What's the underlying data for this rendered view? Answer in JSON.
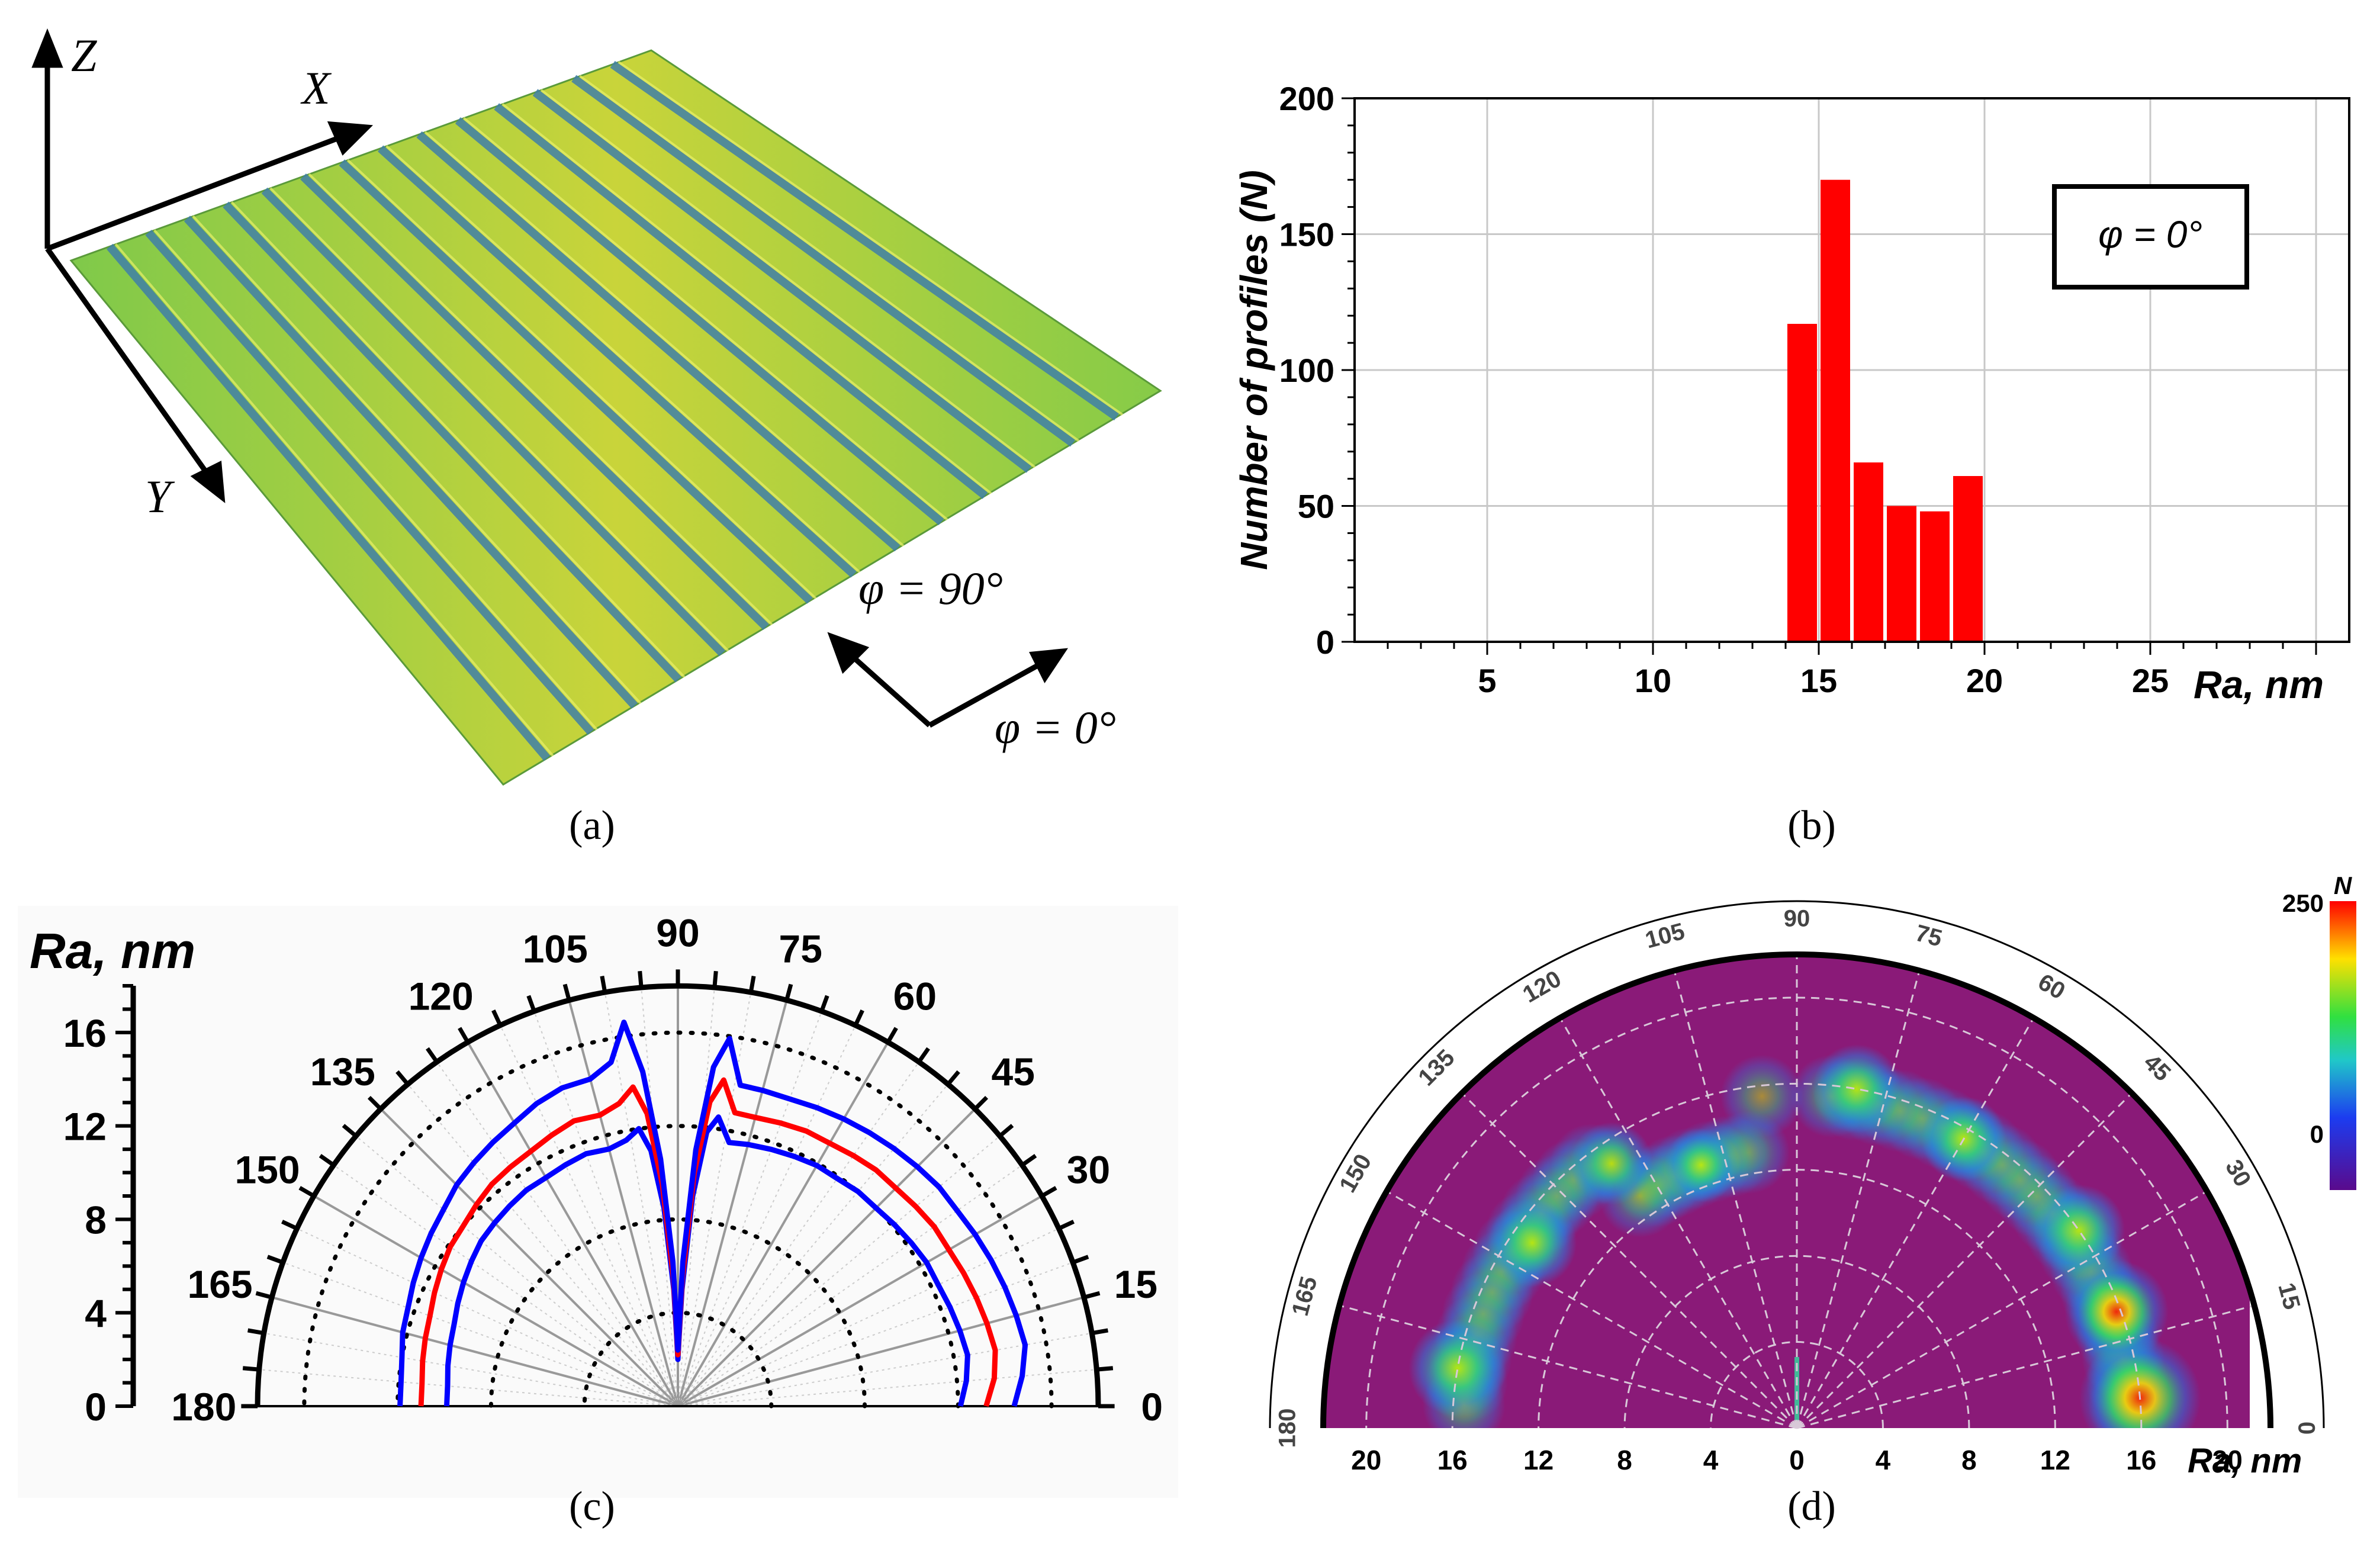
{
  "panels": {
    "a": {
      "caption": "(a)",
      "axes": {
        "z": "Z",
        "x": "X",
        "y": "Y"
      },
      "directions": {
        "phi90": "φ = 90°",
        "phi0": "φ = 0°"
      },
      "colors": {
        "surface_light": "#c9d43a",
        "surface_mid": "#7fc94a",
        "groove": "#3f7fa8"
      }
    },
    "b": {
      "caption": "(b)",
      "legend": "φ = 0°",
      "colors": {
        "bar": "#ff0000",
        "grid": "#c8c8c8"
      }
    },
    "c": {
      "caption": "(c)",
      "ylabel": "Ra, nm",
      "yticks": [
        "0",
        "4",
        "8",
        "12",
        "16"
      ],
      "angle_labels": [
        "0",
        "15",
        "30",
        "45",
        "60",
        "75",
        "90",
        "105",
        "120",
        "135",
        "150",
        "165",
        "180"
      ],
      "colors": {
        "mean": "#ff0000",
        "bounds": "#0000ff"
      }
    },
    "d": {
      "caption": "(d)",
      "angle_labels": [
        "0",
        "15",
        "30",
        "45",
        "60",
        "75",
        "90",
        "105",
        "120",
        "135",
        "150",
        "165",
        "180"
      ],
      "radial_labels": [
        "20",
        "16",
        "12",
        "8",
        "4",
        "0",
        "4",
        "8",
        "12",
        "16",
        "20"
      ],
      "xlabel": "Ra, nm",
      "colorbar": {
        "title": "N",
        "max": "250",
        "min": "0"
      },
      "colors": {
        "background": "#8a1a78"
      }
    }
  },
  "chart_data": [
    {
      "type": "bar",
      "panel": "b",
      "xlabel": "Ra, nm",
      "ylabel": "Number of profiles (N)",
      "xlim": [
        1,
        31
      ],
      "ylim": [
        0,
        200
      ],
      "xticks": [
        5,
        10,
        15,
        20,
        25
      ],
      "yticks": [
        0,
        50,
        100,
        150,
        200
      ],
      "grid": true,
      "legend_position": "top-right",
      "bin_width": 1,
      "x": [
        14.5,
        15.5,
        16.5,
        17.5,
        18.5,
        19.5
      ],
      "values": [
        117,
        170,
        66,
        50,
        48,
        61
      ]
    },
    {
      "type": "line",
      "panel": "c",
      "ylabel": "Ra, nm",
      "ylim": [
        0,
        18
      ],
      "x": [
        0,
        5,
        10,
        15,
        20,
        25,
        30,
        35,
        40,
        45,
        50,
        55,
        60,
        65,
        70,
        75,
        79,
        82,
        84,
        86,
        88,
        89,
        90,
        91,
        92,
        94,
        96,
        98,
        101,
        105,
        110,
        115,
        120,
        125,
        130,
        135,
        140,
        145,
        150,
        155,
        160,
        165,
        170,
        175,
        180
      ],
      "series": [
        {
          "values": [
            12.1,
            12.4,
            12.6,
            12.5,
            12.4,
            12.3,
            12.3,
            12.2,
            12.1,
            12.0,
            12.0,
            11.9,
            11.9,
            11.8,
            11.7,
            11.6,
            11.5,
            12.5,
            11.8,
            9.0,
            5.0,
            3.0,
            2.0,
            3.0,
            5.0,
            8.5,
            11.0,
            12.0,
            11.6,
            11.4,
            11.5,
            11.4,
            11.3,
            11.3,
            11.2,
            11.1,
            11.0,
            10.8,
            10.6,
            10.4,
            10.2,
            10.1,
            10.0,
            9.9,
            9.9
          ]
        },
        {
          "values": [
            13.2,
            13.6,
            13.8,
            13.7,
            13.6,
            13.5,
            13.4,
            13.4,
            13.3,
            13.2,
            13.2,
            13.1,
            13.0,
            13.0,
            12.9,
            12.8,
            12.8,
            14.1,
            13.1,
            10.0,
            5.5,
            3.3,
            2.2,
            3.3,
            5.5,
            9.5,
            12.6,
            13.8,
            13.2,
            12.9,
            13.0,
            12.8,
            12.6,
            12.5,
            12.4,
            12.2,
            12.0,
            11.9,
            11.7,
            11.5,
            11.3,
            11.2,
            11.1,
            11.0,
            11.0
          ]
        },
        {
          "values": [
            14.4,
            14.8,
            15.1,
            15.0,
            14.9,
            14.8,
            14.7,
            14.6,
            14.6,
            14.5,
            14.4,
            14.3,
            14.2,
            14.1,
            14.0,
            14.0,
            14.0,
            15.9,
            14.6,
            11.0,
            6.2,
            3.6,
            2.4,
            3.6,
            6.2,
            10.6,
            14.4,
            16.6,
            15.0,
            14.5,
            14.5,
            14.3,
            14.0,
            13.8,
            13.6,
            13.4,
            13.1,
            12.9,
            12.7,
            12.5,
            12.3,
            12.2,
            12.0,
            11.9,
            11.9
          ]
        }
      ]
    },
    {
      "type": "heatmap",
      "panel": "d",
      "xlabel": "Ra, nm",
      "rlim": [
        0,
        22
      ],
      "colorbar_range": [
        0,
        250
      ],
      "hotspots": [
        {
          "angle": 5,
          "ra": 16,
          "intensity": 250
        },
        {
          "angle": 20,
          "ra": 15.8,
          "intensity": 190
        },
        {
          "angle": 35,
          "ra": 16,
          "intensity": 150
        },
        {
          "angle": 60,
          "ra": 15.5,
          "intensity": 130
        },
        {
          "angle": 80,
          "ra": 16,
          "intensity": 140
        },
        {
          "angle": 110,
          "ra": 13,
          "intensity": 90
        },
        {
          "angle": 125,
          "ra": 15,
          "intensity": 120
        },
        {
          "angle": 145,
          "ra": 15,
          "intensity": 140
        },
        {
          "angle": 170,
          "ra": 16,
          "intensity": 170
        }
      ]
    }
  ]
}
